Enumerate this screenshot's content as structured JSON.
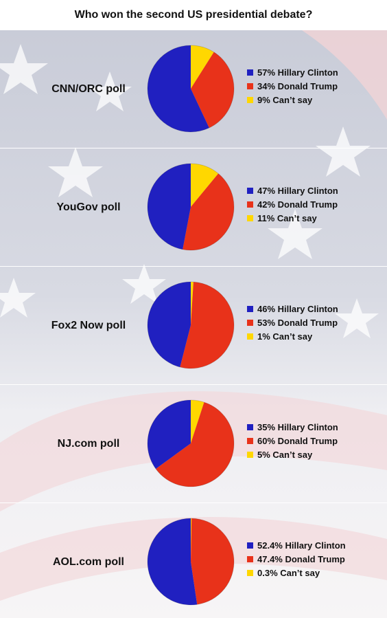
{
  "title": "Who won the second US presidential debate?",
  "colors": {
    "clinton": "#2020c0",
    "trump": "#e8321a",
    "cant_say": "#ffd700"
  },
  "chart_data": [
    {
      "type": "pie",
      "title": "CNN/ORC poll",
      "slices": [
        {
          "label": "Hillary Clinton",
          "value": 57,
          "text": "57% Hillary Clinton"
        },
        {
          "label": "Donald Trump",
          "value": 34,
          "text": "34% Donald Trump"
        },
        {
          "label": "Can’t say",
          "value": 9,
          "text": "9% Can’t say"
        }
      ]
    },
    {
      "type": "pie",
      "title": "YouGov poll",
      "slices": [
        {
          "label": "Hillary Clinton",
          "value": 47,
          "text": "47% Hillary Clinton"
        },
        {
          "label": "Donald Trump",
          "value": 42,
          "text": "42% Donald Trump"
        },
        {
          "label": "Can’t say",
          "value": 11,
          "text": "11% Can’t say"
        }
      ]
    },
    {
      "type": "pie",
      "title": "Fox2 Now poll",
      "slices": [
        {
          "label": "Hillary Clinton",
          "value": 46,
          "text": "46% Hillary Clinton"
        },
        {
          "label": "Donald Trump",
          "value": 53,
          "text": "53% Donald Trump"
        },
        {
          "label": "Can’t say",
          "value": 1,
          "text": "1% Can’t say"
        }
      ]
    },
    {
      "type": "pie",
      "title": "NJ.com poll",
      "slices": [
        {
          "label": "Hillary Clinton",
          "value": 35,
          "text": "35% Hillary Clinton"
        },
        {
          "label": "Donald Trump",
          "value": 60,
          "text": "60% Donald Trump"
        },
        {
          "label": "Can’t say",
          "value": 5,
          "text": "5% Can’t say"
        }
      ]
    },
    {
      "type": "pie",
      "title": "AOL.com poll",
      "slices": [
        {
          "label": "Hillary Clinton",
          "value": 52.4,
          "text": "52.4% Hillary Clinton"
        },
        {
          "label": "Donald Trump",
          "value": 47.4,
          "text": "47.4% Donald Trump"
        },
        {
          "label": "Can’t say",
          "value": 0.3,
          "text": "0.3% Can’t say"
        }
      ]
    }
  ]
}
